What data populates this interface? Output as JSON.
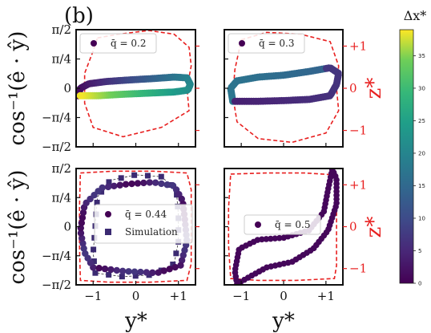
{
  "figure": {
    "panel_tag": "(b)",
    "left_axis_label": "cos⁻¹(ê · ŷ)",
    "right_axis_label": "z*",
    "bottom_axis_label": "y*",
    "colorbar": {
      "label": "Δx*",
      "min": 0,
      "max": 39,
      "ticks": [
        0,
        5,
        10,
        15,
        20,
        25,
        30,
        35
      ]
    }
  },
  "chart_data": [
    {
      "type": "scatter",
      "panel": "top-left",
      "legend": [
        "q̄ = 0.2"
      ],
      "x_range": [
        -1.4,
        1.4
      ],
      "y_range": [
        -1.5708,
        1.5708
      ],
      "y_ticks": [
        "−π/2",
        "−π/4",
        "0",
        "π/4",
        "π/2"
      ],
      "right_ticks": [
        "−1",
        "0",
        "+1"
      ],
      "x_ticks": [],
      "colored_by": "Δx*",
      "orbit": [
        [
          -1.35,
          -0.2
        ],
        [
          -1.3,
          0.0
        ],
        [
          -1.1,
          0.12
        ],
        [
          -0.7,
          0.18
        ],
        [
          -0.2,
          0.22
        ],
        [
          0.4,
          0.26
        ],
        [
          0.9,
          0.3
        ],
        [
          1.2,
          0.28
        ],
        [
          1.28,
          0.1
        ],
        [
          1.22,
          -0.05
        ],
        [
          0.9,
          -0.1
        ],
        [
          0.3,
          -0.13
        ],
        [
          -0.3,
          -0.16
        ],
        [
          -0.9,
          -0.2
        ],
        [
          -1.35,
          -0.2
        ]
      ],
      "dashed_boundary": [
        [
          -0.9,
          1.35
        ],
        [
          -0.4,
          1.45
        ],
        [
          0.3,
          1.55
        ],
        [
          0.9,
          1.45
        ],
        [
          1.25,
          1.1
        ],
        [
          1.3,
          0.6
        ],
        [
          1.2,
          0.0
        ],
        [
          1.25,
          -0.6
        ],
        [
          0.6,
          -1.05
        ],
        [
          -0.3,
          -1.3
        ],
        [
          -1.0,
          -1.05
        ],
        [
          -1.2,
          -0.4
        ],
        [
          -1.2,
          0.4
        ],
        [
          -1.0,
          1.0
        ],
        [
          -0.9,
          1.35
        ]
      ]
    },
    {
      "type": "scatter",
      "panel": "top-right",
      "legend": [
        "q̄ = 0.3"
      ],
      "x_range": [
        -1.4,
        1.4
      ],
      "y_range": [
        -1.5708,
        1.5708
      ],
      "y_ticks": [],
      "right_ticks": [
        "−1",
        "0",
        "+1"
      ],
      "x_ticks": [],
      "colored_by": "Δx*",
      "orbit": [
        [
          -1.2,
          -0.35
        ],
        [
          -1.25,
          0.0
        ],
        [
          -1.1,
          0.2
        ],
        [
          -0.6,
          0.3
        ],
        [
          0.0,
          0.35
        ],
        [
          0.6,
          0.45
        ],
        [
          1.1,
          0.55
        ],
        [
          1.3,
          0.4
        ],
        [
          1.25,
          0.1
        ],
        [
          1.1,
          -0.2
        ],
        [
          0.6,
          -0.3
        ],
        [
          0.0,
          -0.33
        ],
        [
          -0.6,
          -0.35
        ],
        [
          -1.2,
          -0.35
        ]
      ],
      "dashed_boundary": [
        [
          -1.0,
          1.3
        ],
        [
          -0.4,
          1.5
        ],
        [
          0.4,
          1.45
        ],
        [
          1.1,
          1.25
        ],
        [
          1.3,
          0.6
        ],
        [
          1.25,
          0.0
        ],
        [
          1.3,
          -0.6
        ],
        [
          1.0,
          -1.2
        ],
        [
          0.2,
          -1.45
        ],
        [
          -0.6,
          -1.35
        ],
        [
          -1.1,
          -0.9
        ],
        [
          -1.2,
          -0.2
        ],
        [
          -1.15,
          0.5
        ],
        [
          -1.0,
          1.3
        ]
      ]
    },
    {
      "type": "scatter",
      "panel": "bottom-left",
      "legend": [
        "q̄ = 0.44",
        "Simulation"
      ],
      "x_range": [
        -1.4,
        1.4
      ],
      "y_range": [
        -1.5708,
        1.5708
      ],
      "y_ticks": [
        "−π/2",
        "−π/4",
        "0",
        "π/4",
        "π/2"
      ],
      "right_ticks": [
        "−1",
        "0",
        "+1"
      ],
      "x_ticks": [
        "−1",
        "0",
        "+1"
      ],
      "colored_by": "Δx*",
      "orbit": [
        [
          -1.0,
          -1.1
        ],
        [
          -1.2,
          -0.7
        ],
        [
          -1.3,
          -0.1
        ],
        [
          -1.2,
          0.6
        ],
        [
          -0.8,
          1.05
        ],
        [
          -0.2,
          1.15
        ],
        [
          0.4,
          1.2
        ],
        [
          0.9,
          1.1
        ],
        [
          1.1,
          0.7
        ],
        [
          1.15,
          0.2
        ],
        [
          1.2,
          -0.4
        ],
        [
          1.05,
          -1.05
        ],
        [
          0.5,
          -1.25
        ],
        [
          -0.3,
          -1.2
        ],
        [
          -1.0,
          -1.1
        ]
      ],
      "simulation": [
        [
          -0.95,
          -1.25
        ],
        [
          -1.0,
          -0.7
        ],
        [
          -0.95,
          0.0
        ],
        [
          -0.9,
          0.8
        ],
        [
          -0.6,
          1.25
        ],
        [
          0.0,
          1.4
        ],
        [
          0.6,
          1.35
        ],
        [
          0.95,
          1.0
        ],
        [
          1.0,
          0.3
        ],
        [
          1.0,
          -0.4
        ],
        [
          0.9,
          -1.0
        ],
        [
          0.4,
          -1.3
        ],
        [
          -0.3,
          -1.35
        ],
        [
          -0.95,
          -1.25
        ]
      ],
      "dashed_boundary": [
        [
          -1.3,
          1.45
        ],
        [
          -0.5,
          1.5
        ],
        [
          0.4,
          1.5
        ],
        [
          1.2,
          1.45
        ],
        [
          1.3,
          1.0
        ],
        [
          1.3,
          0.0
        ],
        [
          1.3,
          -1.0
        ],
        [
          1.2,
          -1.45
        ],
        [
          0.3,
          -1.5
        ],
        [
          -0.6,
          -1.5
        ],
        [
          -1.3,
          -1.45
        ],
        [
          -1.32,
          -0.5
        ],
        [
          -1.32,
          0.5
        ],
        [
          -1.3,
          1.45
        ]
      ]
    },
    {
      "type": "scatter",
      "panel": "bottom-right",
      "legend": [
        "q̄ = 0.5"
      ],
      "x_range": [
        -1.4,
        1.4
      ],
      "y_range": [
        -1.5708,
        1.5708
      ],
      "y_ticks": [],
      "right_ticks": [
        "−1",
        "0",
        "+1"
      ],
      "x_ticks": [
        "−1",
        "0",
        "+1"
      ],
      "colored_by": "Δx*",
      "orbit": [
        [
          -1.1,
          -1.55
        ],
        [
          -1.15,
          -1.2
        ],
        [
          -1.05,
          -0.6
        ],
        [
          -0.6,
          -0.35
        ],
        [
          0.0,
          -0.3
        ],
        [
          0.6,
          -0.1
        ],
        [
          0.95,
          0.4
        ],
        [
          1.05,
          1.0
        ],
        [
          1.15,
          1.55
        ],
        [
          1.25,
          1.3
        ],
        [
          1.25,
          0.6
        ],
        [
          1.05,
          -0.1
        ],
        [
          0.7,
          -0.6
        ],
        [
          0.2,
          -0.95
        ],
        [
          -0.4,
          -1.1
        ],
        [
          -0.8,
          -1.35
        ],
        [
          -1.1,
          -1.55
        ]
      ],
      "dashed_boundary": [
        [
          -1.25,
          1.42
        ],
        [
          -0.4,
          1.45
        ],
        [
          0.5,
          1.45
        ],
        [
          1.2,
          1.4
        ],
        [
          1.25,
          0.6
        ],
        [
          1.25,
          -0.2
        ],
        [
          1.25,
          -1.05
        ],
        [
          1.2,
          -1.4
        ],
        [
          0.3,
          -1.45
        ],
        [
          -0.6,
          -1.45
        ],
        [
          -1.25,
          -1.4
        ],
        [
          -1.3,
          -0.5
        ],
        [
          -1.3,
          0.5
        ],
        [
          -1.25,
          1.42
        ]
      ]
    }
  ]
}
